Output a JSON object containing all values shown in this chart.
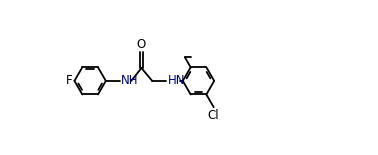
{
  "bg_color": "#ffffff",
  "line_color": "#000000",
  "nh_color": "#000080",
  "atom_color": "#000000",
  "fig_width": 3.78,
  "fig_height": 1.55,
  "dpi": 100,
  "lw": 1.3,
  "r": 0.3,
  "xlim": [
    0.0,
    5.6
  ],
  "ylim": [
    -0.85,
    0.95
  ]
}
